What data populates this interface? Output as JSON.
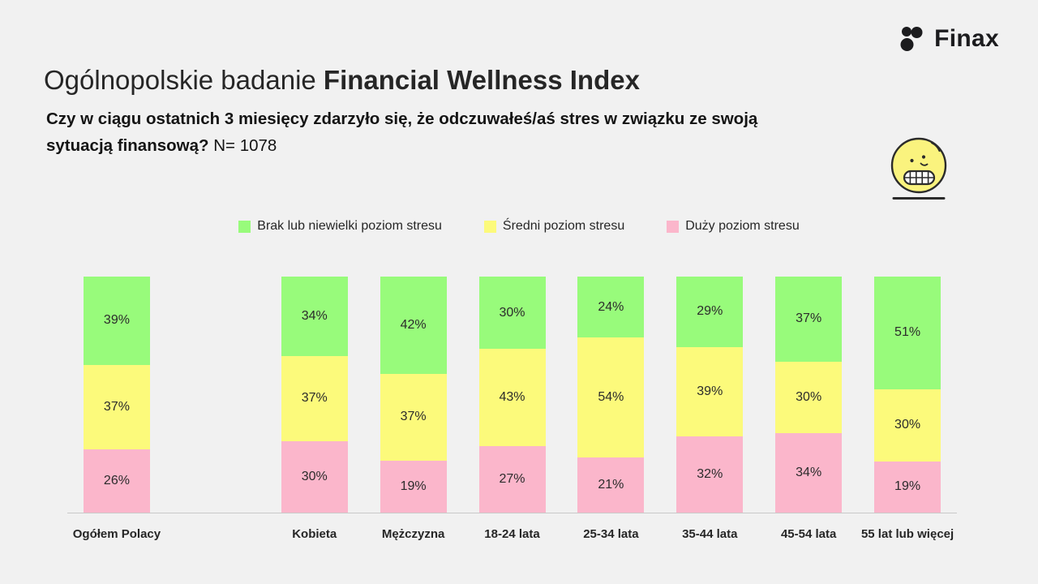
{
  "page": {
    "background": "#f1f1f1"
  },
  "brand": {
    "name": "Finax",
    "color": "#1c1c1e"
  },
  "header": {
    "title_regular": "Ogólnopolskie badanie ",
    "title_bold": "Financial Wellness Index",
    "question_line1": "Czy w ciągu ostatnich 3 miesięcy zdarzyło się, że odczuwałeś/aś stres w związku ze swoją",
    "question_line2": "sytuacją finansową?",
    "sample": "N= 1078"
  },
  "legend": [
    {
      "label": "Brak lub niewielki poziom stresu",
      "color": "#98fb7b"
    },
    {
      "label": "Średni poziom stresu",
      "color": "#fcfa7b"
    },
    {
      "label": "Duży poziom stresu",
      "color": "#fbb6cb"
    }
  ],
  "icons": {
    "emoji": "grimacing-face-emoji",
    "logo_mark": "finax-three-dots-logo"
  },
  "chart_data": {
    "type": "bar",
    "stacked": true,
    "percent_of_total": true,
    "title": "",
    "xlabel": "",
    "ylabel": "",
    "ylim": [
      0,
      100
    ],
    "grid": false,
    "legend_position": "top",
    "value_suffix": "%",
    "categories": [
      "Ogółem Polacy",
      "Kobieta",
      "Mężczyzna",
      "18-24 lata",
      "25-34 lata",
      "35-44 lata",
      "45-54 lata",
      "55 lat lub więcej"
    ],
    "gap_after_category_index": 0,
    "series": [
      {
        "name": "Brak lub niewielki poziom stresu",
        "color": "#98fb7b",
        "values": [
          39,
          34,
          42,
          30,
          24,
          29,
          37,
          51
        ]
      },
      {
        "name": "Średni poziom stresu",
        "color": "#fcfa7b",
        "values": [
          37,
          37,
          37,
          43,
          54,
          39,
          30,
          30
        ]
      },
      {
        "name": "Duży poziom stresu",
        "color": "#fbb6cb",
        "values": [
          26,
          30,
          19,
          27,
          21,
          32,
          34,
          19
        ]
      }
    ]
  }
}
